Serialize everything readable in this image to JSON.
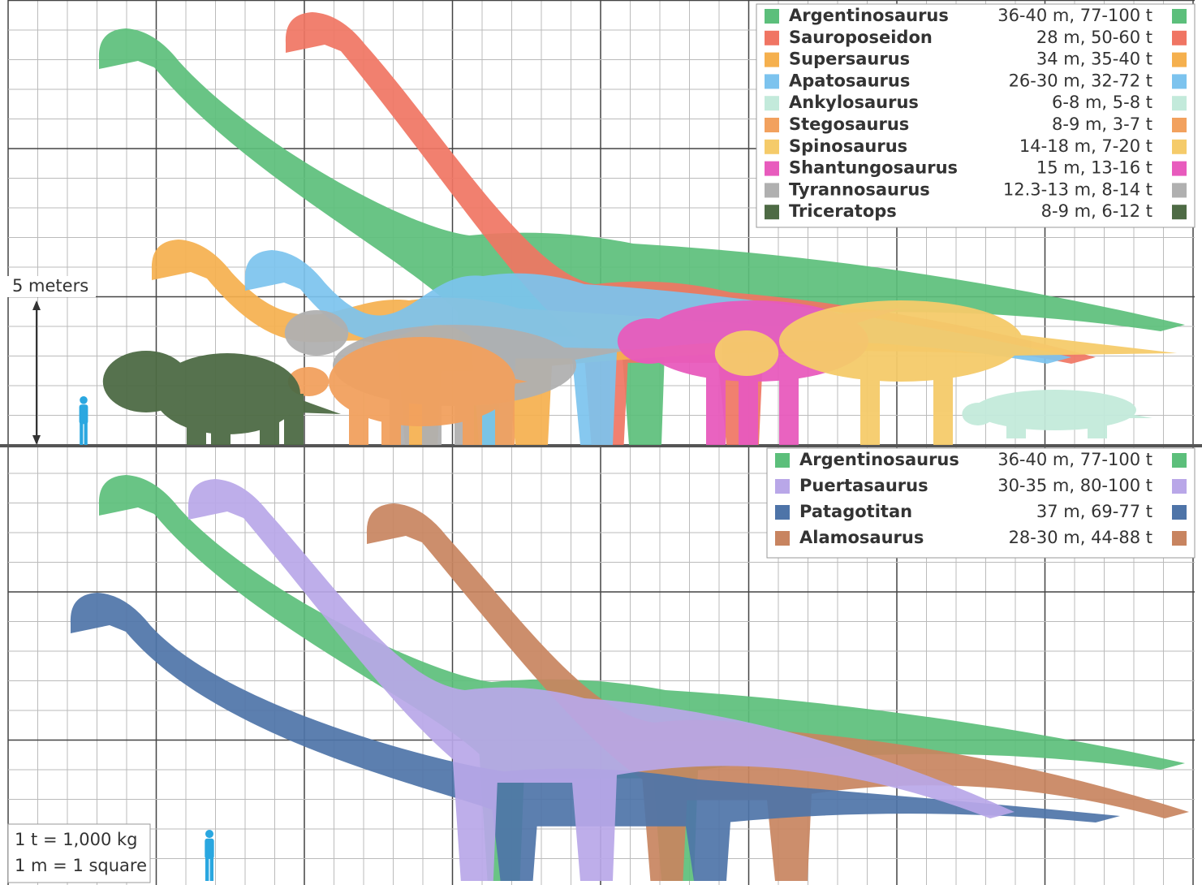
{
  "panels": [
    {
      "legend": [
        {
          "name": "Argentinosaurus",
          "size": "36-40 m, 77-100 t",
          "color": "#5cbf7b"
        },
        {
          "name": "Sauroposeidon",
          "size": "28 m, 50-60 t",
          "color": "#f07563"
        },
        {
          "name": "Supersaurus",
          "size": "34 m, 35-40 t",
          "color": "#f5b04e"
        },
        {
          "name": "Apatosaurus",
          "size": "26-30 m, 32-72 t",
          "color": "#7cc3ee"
        },
        {
          "name": "Ankylosaurus",
          "size": "6-8 m, 5-8 t",
          "color": "#c3eadb"
        },
        {
          "name": "Stegosaurus",
          "size": "8-9 m, 3-7 t",
          "color": "#f2a15e"
        },
        {
          "name": "Spinosaurus",
          "size": "14-18 m, 7-20 t",
          "color": "#f5cb6a"
        },
        {
          "name": "Shantungosaurus",
          "size": "15 m, 13-16 t",
          "color": "#e85bbd"
        },
        {
          "name": "Tyrannosaurus",
          "size": "12.3-13 m, 8-14 t",
          "color": "#b0b0b0"
        },
        {
          "name": "Triceratops",
          "size": "8-9 m, 6-12 t",
          "color": "#4e6b45"
        }
      ]
    },
    {
      "legend": [
        {
          "name": "Argentinosaurus",
          "size": "36-40 m, 77-100 t",
          "color": "#5cbf7b"
        },
        {
          "name": "Puertasaurus",
          "size": "30-35 m, 80-100 t",
          "color": "#b9a7e8"
        },
        {
          "name": "Patagotitan",
          "size": "37 m, 69-77 t",
          "color": "#4e74a8"
        },
        {
          "name": "Alamosaurus",
          "size": "28-30 m, 44-88 t",
          "color": "#c88460"
        }
      ]
    }
  ],
  "scale_label": "5 meters",
  "notes": [
    "1 t = 1,000 kg",
    "1 m = 1 square"
  ]
}
